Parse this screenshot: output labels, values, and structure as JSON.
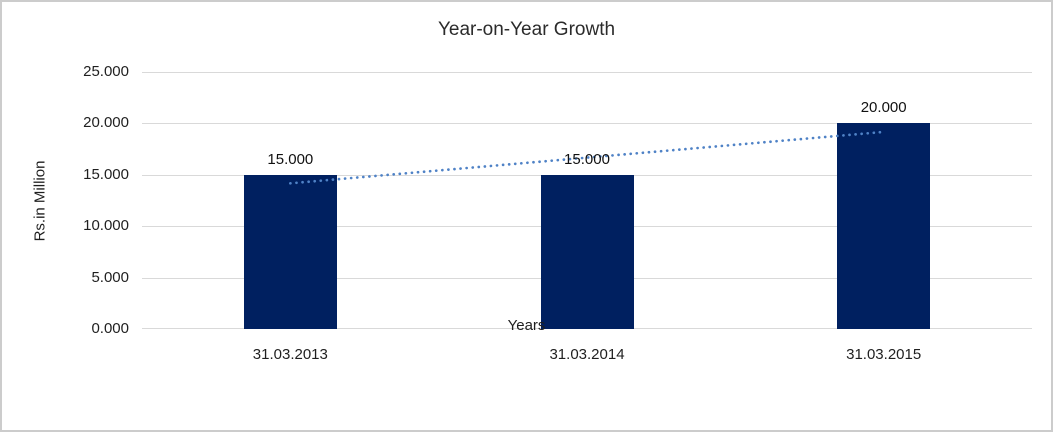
{
  "chart_data": {
    "type": "bar",
    "title": "Year-on-Year Growth",
    "categories": [
      "31.03.2013",
      "31.03.2014",
      "31.03.2015"
    ],
    "values": [
      15.0,
      15.0,
      20.0
    ],
    "data_labels": [
      "15.000",
      "15.000",
      "20.000"
    ],
    "xlabel": "Years",
    "ylabel": "Rs.in Million",
    "ylim": [
      0,
      25
    ],
    "ytick_step": 5,
    "yticks": [
      "25.000",
      "20.000",
      "15.000",
      "10.000",
      "5.000",
      "0.000"
    ],
    "grid": true,
    "legend": "none",
    "trendline": {
      "style": "dotted",
      "start_value": 14.17,
      "end_value": 19.17
    }
  },
  "colors": {
    "bar": "#002060",
    "trendline": "#4f82c6",
    "gridline": "#d9d9d9",
    "border": "#cccccc",
    "text": "#1f1f1f"
  }
}
